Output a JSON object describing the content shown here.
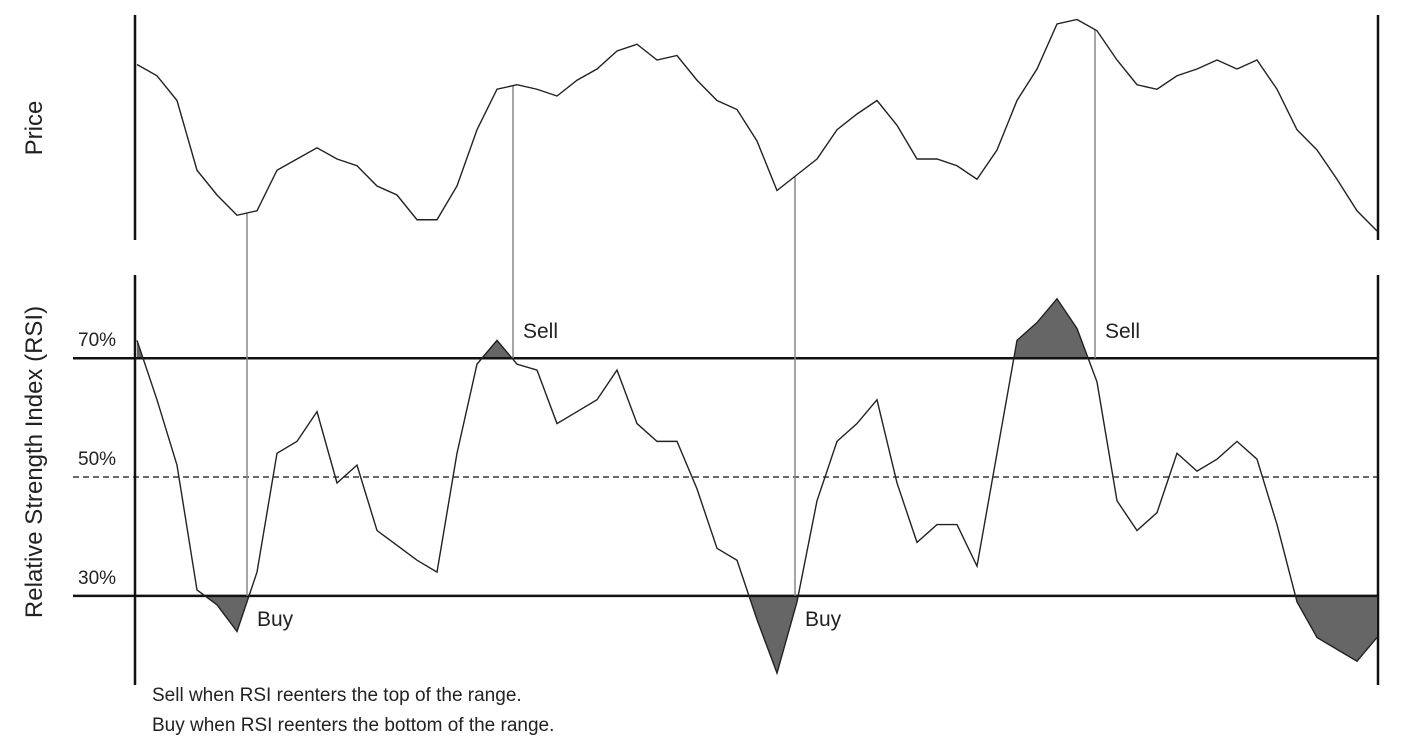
{
  "chart_data": [
    {
      "type": "line",
      "ylabel": "Price",
      "ylim": [
        0,
        100
      ],
      "color": "#222222",
      "values": [
        78,
        73,
        62,
        31,
        20,
        11,
        13,
        31,
        36,
        41,
        36,
        33,
        24,
        20,
        9,
        9,
        24,
        49,
        67,
        69,
        67,
        64,
        71,
        76,
        84,
        87,
        80,
        82,
        71,
        62,
        58,
        44,
        22,
        29,
        36,
        49,
        56,
        62,
        51,
        36,
        36,
        33,
        27,
        40,
        62,
        76,
        96,
        98,
        93,
        80,
        69,
        67,
        73,
        76,
        80,
        76,
        80,
        67,
        49,
        40,
        27,
        13,
        4
      ]
    },
    {
      "type": "line",
      "ylabel": "Relative Strength Index (RSI)",
      "ylim": [
        15,
        84
      ],
      "color": "#222222",
      "shade_color": "#666666",
      "yticks": [
        {
          "value": 30,
          "label": "30%"
        },
        {
          "value": 50,
          "label": "50%"
        },
        {
          "value": 70,
          "label": "70%"
        }
      ],
      "values": [
        73,
        63,
        52,
        31,
        28.5,
        24,
        34,
        54,
        56,
        61,
        49,
        52,
        41,
        38.5,
        36,
        34,
        54,
        69,
        73,
        69,
        68,
        59,
        61,
        63,
        68,
        59,
        56,
        56,
        48,
        38,
        36,
        26,
        17,
        29,
        46,
        56,
        59,
        63,
        49,
        39,
        42,
        42,
        35,
        54,
        73,
        76,
        80,
        75,
        66,
        46,
        41,
        44,
        54,
        51,
        53,
        56,
        53,
        42,
        29,
        23,
        21,
        19,
        23
      ],
      "annotations": [
        {
          "text": "Buy",
          "x": 5.5
        },
        {
          "text": "Sell",
          "x": 18.8
        },
        {
          "text": "Buy",
          "x": 32.9
        },
        {
          "text": "Sell",
          "x": 47.9
        }
      ],
      "notes": [
        "Sell when RSI reenters the top of the range.",
        "Buy when RSI reenters the bottom of the range."
      ]
    }
  ]
}
